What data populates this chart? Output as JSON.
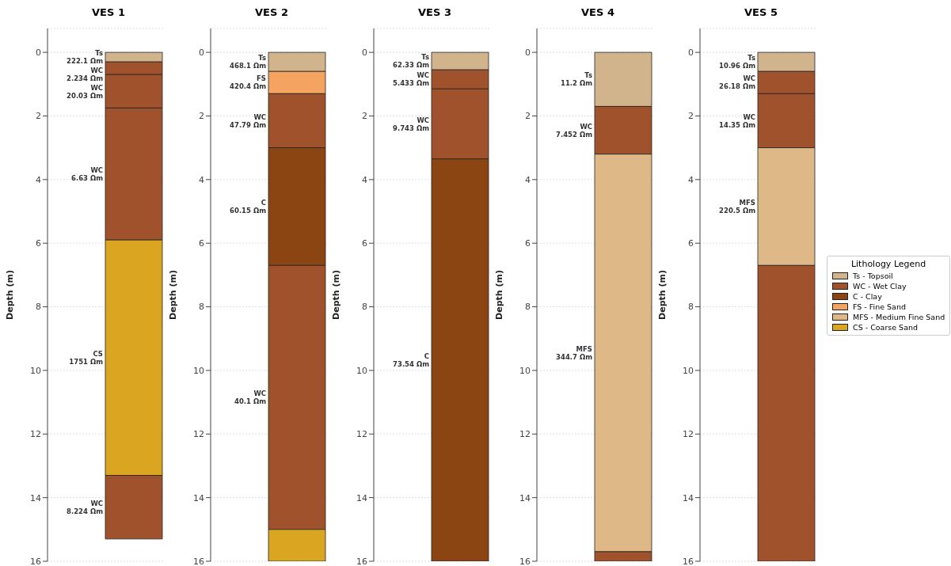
{
  "chart_data": [
    {
      "type": "bar",
      "title": "VES 1",
      "ylabel": "Depth (m)",
      "stacked": true,
      "categories": [
        null
      ],
      "ylim": [
        16,
        -0.75
      ],
      "yticks": [
        0,
        2,
        4,
        6,
        8,
        10,
        12,
        14,
        16
      ],
      "grid": "y",
      "tick_labels": "y",
      "series": [
        {
          "color": "#d2b48c",
          "values": [
            0.3
          ]
        },
        {
          "color": "#a0522d",
          "values": [
            0.4
          ]
        },
        {
          "color": "#a0522d",
          "values": [
            1.05
          ]
        },
        {
          "color": "#a0522d",
          "values": [
            4.15
          ]
        },
        {
          "color": "#daa520",
          "values": [
            7.4
          ]
        },
        {
          "color": "#a0522d",
          "values": [
            2.0
          ]
        }
      ],
      "annotations": [
        "Ts\n222.1 Ωm",
        "WC\n2.234 Ωm",
        "WC\n20.03 Ωm",
        "WC\n6.63 Ωm",
        "CS\n1751 Ωm",
        "WC\n8.224 Ωm"
      ]
    },
    {
      "type": "bar",
      "title": "VES 2",
      "ylabel": "Depth (m)",
      "stacked": true,
      "categories": [
        null
      ],
      "ylim": [
        16,
        -0.75
      ],
      "yticks": [
        0,
        2,
        4,
        6,
        8,
        10,
        12,
        14,
        16
      ],
      "grid": "y",
      "tick_labels": "y",
      "series": [
        {
          "color": "#d2b48c",
          "values": [
            0.6
          ]
        },
        {
          "color": "#f4a460",
          "values": [
            0.7
          ]
        },
        {
          "color": "#a0522d",
          "values": [
            1.7
          ]
        },
        {
          "color": "#8b4513",
          "values": [
            3.7
          ]
        },
        {
          "color": "#a0522d",
          "values": [
            8.3
          ]
        },
        {
          "color": "#daa520",
          "values": [
            1.0
          ]
        }
      ],
      "annotations": [
        "Ts\n468.1 Ωm",
        "FS\n420.4 Ωm",
        "WC\n47.79 Ωm",
        "C\n60.15 Ωm",
        "WC\n40.1 Ωm"
      ]
    },
    {
      "type": "bar",
      "title": "VES 3",
      "ylabel": "Depth (m)",
      "stacked": true,
      "categories": [
        null
      ],
      "ylim": [
        16,
        -0.75
      ],
      "yticks": [
        0,
        2,
        4,
        6,
        8,
        10,
        12,
        14,
        16
      ],
      "grid": "y",
      "tick_labels": "y",
      "series": [
        {
          "color": "#d2b48c",
          "values": [
            0.55
          ]
        },
        {
          "color": "#a0522d",
          "values": [
            0.6
          ]
        },
        {
          "color": "#a0522d",
          "values": [
            2.2
          ]
        },
        {
          "color": "#8b4513",
          "values": [
            12.65
          ]
        }
      ],
      "annotations": [
        "Ts\n62.33 Ωm",
        "WC\n5.433 Ωm",
        "WC\n9.743 Ωm",
        "C\n73.54 Ωm"
      ]
    },
    {
      "type": "bar",
      "title": "VES 4",
      "ylabel": "Depth (m)",
      "stacked": true,
      "categories": [
        null
      ],
      "ylim": [
        16,
        -0.75
      ],
      "yticks": [
        0,
        2,
        4,
        6,
        8,
        10,
        12,
        14,
        16
      ],
      "grid": "y",
      "tick_labels": "y",
      "series": [
        {
          "color": "#d2b48c",
          "values": [
            1.7
          ]
        },
        {
          "color": "#a0522d",
          "values": [
            1.5
          ]
        },
        {
          "color": "#deb887",
          "values": [
            12.5
          ]
        },
        {
          "color": "#a0522d",
          "values": [
            0.3
          ]
        }
      ],
      "annotations": [
        "Ts\n11.2 Ωm",
        "WC\n7.452 Ωm",
        "MFS\n344.7 Ωm"
      ]
    },
    {
      "type": "bar",
      "title": "VES 5",
      "ylabel": "Depth (m)",
      "stacked": true,
      "categories": [
        null
      ],
      "ylim": [
        16,
        -0.75
      ],
      "yticks": [
        0,
        2,
        4,
        6,
        8,
        10,
        12,
        14,
        16
      ],
      "grid": "y",
      "tick_labels": "y",
      "series": [
        {
          "color": "#d2b48c",
          "values": [
            0.6
          ]
        },
        {
          "color": "#a0522d",
          "values": [
            0.7
          ]
        },
        {
          "color": "#a0522d",
          "values": [
            1.7
          ]
        },
        {
          "color": "#deb887",
          "values": [
            3.7
          ]
        },
        {
          "color": "#a0522d",
          "values": [
            9.3
          ]
        }
      ],
      "annotations": [
        "Ts\n10.96 Ωm",
        "WC\n26.18 Ωm",
        "WC\n14.35 Ωm",
        "MFS\n220.5 Ωm"
      ]
    },
    {
      "type": "other",
      "legend_title": "Lithology Legend",
      "series": [
        {
          "name": "Ts - Topsoil",
          "color": "#d2b48c"
        },
        {
          "name": "WC - Wet Clay",
          "color": "#a0522d"
        },
        {
          "name": "C - Clay",
          "color": "#8b4513"
        },
        {
          "name": "FS - Fine Sand",
          "color": "#f4a460"
        },
        {
          "name": "MFS - Medium Fine Sand",
          "color": "#deb887"
        },
        {
          "name": "CS - Coarse Sand",
          "color": "#daa520"
        }
      ]
    }
  ]
}
